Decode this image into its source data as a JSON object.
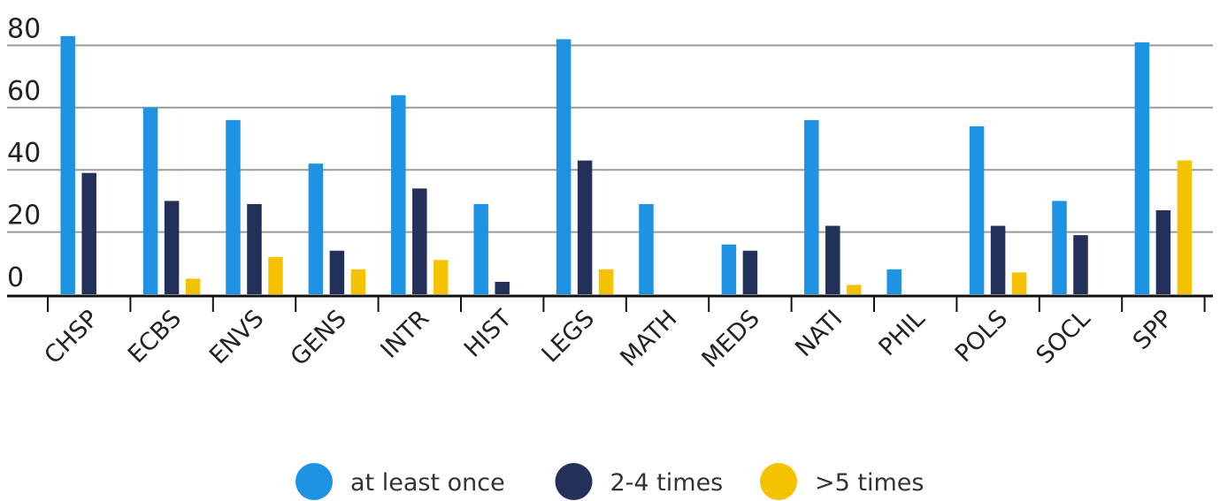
{
  "chart_data": {
    "type": "bar",
    "title": "",
    "xlabel": "",
    "ylabel": "",
    "ylim": [
      0,
      85
    ],
    "yticks": [
      0,
      20,
      40,
      60,
      80
    ],
    "grid": true,
    "legend_position": "bottom-center",
    "categories": [
      "CHSP",
      "ECBS",
      "ENVS",
      "GENS",
      "INTR",
      "HIST",
      "LEGS",
      "MATH",
      "MEDS",
      "NATI",
      "PHIL",
      "POLS",
      "SOCL",
      "SPP"
    ],
    "series": [
      {
        "name": "at least once",
        "color": "#1f93e3",
        "values": [
          83,
          60,
          56,
          42,
          64,
          29,
          82,
          29,
          16,
          56,
          8,
          54,
          30,
          81
        ]
      },
      {
        "name": "2-4 times",
        "color": "#23305a",
        "values": [
          39,
          30,
          29,
          14,
          34,
          4,
          43,
          0,
          14,
          22,
          0,
          22,
          19,
          27
        ]
      },
      {
        "name": ">5 times",
        "color": "#f5c200",
        "values": [
          0,
          5,
          12,
          8,
          11,
          0,
          8,
          0,
          0,
          3,
          0,
          7,
          0,
          43
        ]
      }
    ]
  }
}
